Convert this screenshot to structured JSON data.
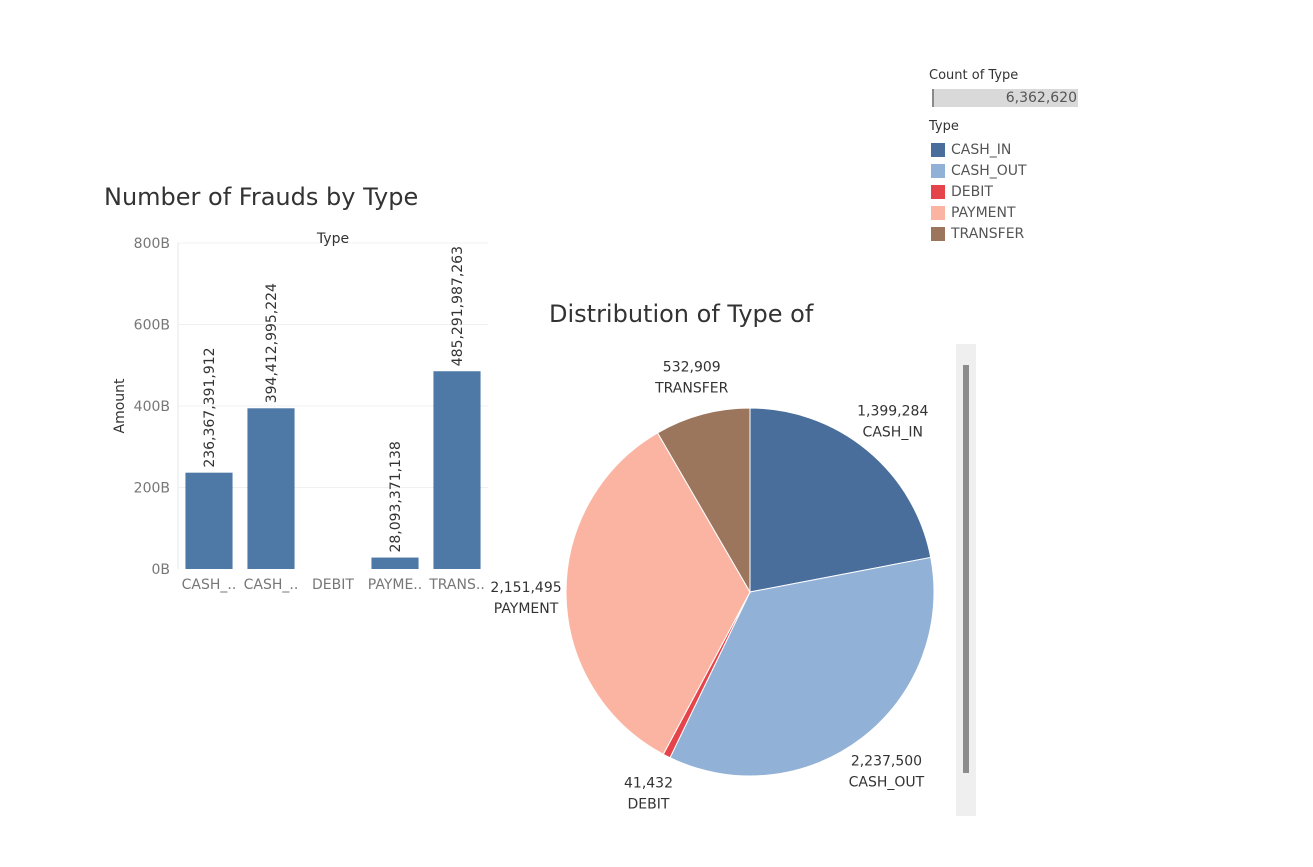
{
  "legend": {
    "count_title": "Count of Type",
    "count_value": "6,362,620",
    "type_title": "Type",
    "items": [
      {
        "label": "CASH_IN",
        "color": "#4a6e9c"
      },
      {
        "label": "CASH_OUT",
        "color": "#92b1d6"
      },
      {
        "label": "DEBIT",
        "color": "#e5444a"
      },
      {
        "label": "PAYMENT",
        "color": "#fcb4a2"
      },
      {
        "label": "TRANSFER",
        "color": "#9c755d"
      }
    ]
  },
  "chart_data": [
    {
      "type": "bar",
      "title": "Number of Frauds by Type",
      "column_header": "Type",
      "ylabel": "Amount",
      "categories": [
        "CASH_..",
        "CASH_..",
        "DEBIT",
        "PAYME..",
        "TRANS.."
      ],
      "values": [
        236367391912,
        394412995224,
        0,
        28093371138,
        485291987263
      ],
      "data_labels": [
        "236,367,391,912",
        "394,412,995,224",
        "",
        "28,093,371,138",
        "485,291,987,263"
      ],
      "yticks": [
        0,
        200000000000,
        400000000000,
        600000000000,
        800000000000
      ],
      "ytick_labels": [
        "0B",
        "200B",
        "400B",
        "600B",
        "800B"
      ],
      "ylim": [
        0,
        800000000000
      ],
      "color": "#4e79a7",
      "grid": true
    },
    {
      "type": "pie",
      "title": "Distribution of Type of",
      "slices": [
        {
          "label": "CASH_IN",
          "value": 1399284,
          "value_label": "1,399,284",
          "color": "#4a6e9c"
        },
        {
          "label": "CASH_OUT",
          "value": 2237500,
          "value_label": "2,237,500",
          "color": "#92b1d6"
        },
        {
          "label": "DEBIT",
          "value": 41432,
          "value_label": "41,432",
          "color": "#e5444a"
        },
        {
          "label": "PAYMENT",
          "value": 2151495,
          "value_label": "2,151,495",
          "color": "#fcb4a2"
        },
        {
          "label": "TRANSFER",
          "value": 532909,
          "value_label": "532,909",
          "color": "#9c755d"
        }
      ]
    }
  ]
}
